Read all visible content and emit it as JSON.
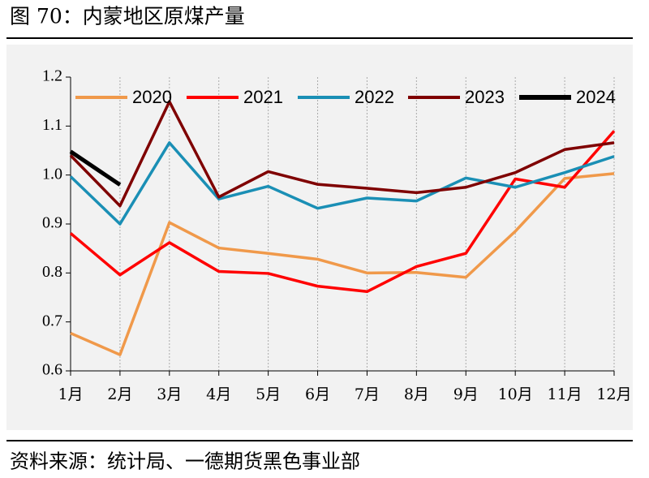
{
  "chart_data": {
    "type": "line",
    "title": "图 70：内蒙地区原煤产量",
    "source": "资料来源：统计局、一德期货黑色事业部",
    "categories": [
      "1月",
      "2月",
      "3月",
      "4月",
      "5月",
      "6月",
      "7月",
      "8月",
      "9月",
      "10月",
      "11月",
      "12月"
    ],
    "ylim": [
      0.6,
      1.2
    ],
    "yticks": [
      0.6,
      0.7,
      0.8,
      0.9,
      {
        "value": 1,
        "label": "1.0"
      },
      1.1,
      1.2
    ],
    "grid": true,
    "legend": "top",
    "series": [
      {
        "name": "2020",
        "color": "#f0994a",
        "values": [
          0.677,
          0.633,
          0.903,
          0.851,
          0.84,
          0.828,
          0.8,
          0.801,
          0.791,
          0.885,
          0.993,
          1.003
        ]
      },
      {
        "name": "2021",
        "color": "#ff0000",
        "values": [
          0.881,
          0.796,
          0.862,
          0.803,
          0.799,
          0.773,
          0.762,
          0.813,
          0.84,
          0.992,
          0.975,
          1.09
        ]
      },
      {
        "name": "2022",
        "color": "#1a8fb5",
        "values": [
          0.997,
          0.9,
          1.066,
          0.951,
          0.977,
          0.932,
          0.953,
          0.947,
          0.994,
          0.975,
          1.005,
          1.038
        ]
      },
      {
        "name": "2023",
        "color": "#7f0000",
        "values": [
          1.04,
          0.937,
          1.15,
          0.955,
          1.007,
          0.981,
          0.973,
          0.964,
          0.975,
          1.005,
          1.052,
          1.066
        ]
      },
      {
        "name": "2024",
        "color": "#000000",
        "values": [
          1.048,
          0.98,
          null,
          null,
          null,
          null,
          null,
          null,
          null,
          null,
          null,
          null
        ]
      }
    ]
  }
}
